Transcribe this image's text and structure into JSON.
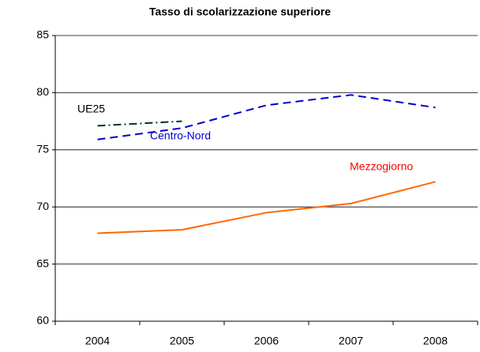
{
  "chart_data": {
    "type": "line",
    "title": "Tasso di scolarizzazione superiore",
    "categories": [
      "2004",
      "2005",
      "2006",
      "2007",
      "2008"
    ],
    "series": [
      {
        "name": "UE25",
        "color": "#003333",
        "dash": "dashdot",
        "values": [
          77.1,
          77.5,
          null,
          null,
          null
        ]
      },
      {
        "name": "Centro-Nord",
        "color": "#0000cc",
        "dash": "dashed",
        "values": [
          75.9,
          76.9,
          78.9,
          79.8,
          78.7
        ]
      },
      {
        "name": "Mezzogiorno",
        "color": "#ff6600",
        "dash": "solid",
        "values": [
          67.7,
          68.0,
          69.5,
          70.3,
          72.2
        ]
      }
    ],
    "ylim": [
      60,
      85
    ],
    "yticks": [
      60,
      65,
      70,
      75,
      80,
      85
    ],
    "grid": true
  }
}
